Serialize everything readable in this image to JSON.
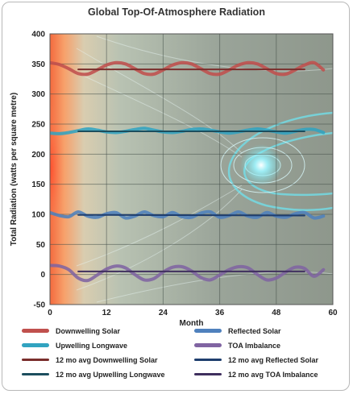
{
  "chart_data": {
    "type": "line",
    "title": "Global Top-Of-Atmosphere Radiation",
    "xlabel": "Month",
    "ylabel": "Total Radiation (watts per square metre)",
    "xlim": [
      0,
      60
    ],
    "ylim": [
      -50,
      400
    ],
    "xticks": [
      0,
      12,
      24,
      36,
      48,
      60
    ],
    "yticks": [
      -50,
      0,
      50,
      100,
      150,
      200,
      250,
      300,
      350,
      400
    ],
    "grid": true,
    "legend_position": "bottom",
    "background": "solar-wind magnetosphere image",
    "series": [
      {
        "name": "Downwelling Solar",
        "color": "#c0504d",
        "style": "monthly",
        "x": [
          0,
          2,
          4,
          6,
          8,
          10,
          12,
          14,
          16,
          18,
          20,
          22,
          24,
          26,
          28,
          30,
          32,
          34,
          36,
          38,
          40,
          42,
          44,
          46,
          48,
          50,
          52,
          54,
          56,
          58
        ],
        "values": [
          352,
          349,
          342,
          334,
          333,
          340,
          348,
          352,
          350,
          342,
          334,
          333,
          340,
          348,
          352,
          350,
          342,
          334,
          333,
          340,
          348,
          352,
          350,
          342,
          334,
          333,
          340,
          348,
          352,
          340
        ]
      },
      {
        "name": "Reflected Solar",
        "color": "#4f81bd",
        "style": "monthly",
        "x": [
          0,
          2,
          4,
          6,
          8,
          10,
          12,
          14,
          16,
          18,
          20,
          22,
          24,
          26,
          28,
          30,
          32,
          34,
          36,
          38,
          40,
          42,
          44,
          46,
          48,
          50,
          52,
          54,
          56,
          58
        ],
        "values": [
          103,
          98,
          96,
          104,
          97,
          95,
          101,
          103,
          94,
          97,
          104,
          98,
          96,
          103,
          96,
          95,
          102,
          104,
          95,
          98,
          104,
          97,
          95,
          103,
          97,
          95,
          101,
          103,
          94,
          97
        ]
      },
      {
        "name": "Upwelling Longwave",
        "color": "#31a3c0",
        "style": "monthly",
        "x": [
          0,
          2,
          4,
          6,
          8,
          10,
          12,
          14,
          16,
          18,
          20,
          22,
          24,
          26,
          28,
          30,
          32,
          34,
          36,
          38,
          40,
          42,
          44,
          46,
          48,
          50,
          52,
          54,
          56,
          58
        ],
        "values": [
          235,
          234,
          236,
          239,
          242,
          240,
          237,
          236,
          238,
          241,
          243,
          240,
          237,
          236,
          238,
          241,
          242,
          240,
          237,
          235,
          237,
          240,
          242,
          240,
          237,
          235,
          238,
          241,
          241,
          236
        ]
      },
      {
        "name": "TOA Imbalance",
        "color": "#8064a2",
        "style": "monthly",
        "x": [
          0,
          2,
          4,
          6,
          8,
          10,
          12,
          14,
          16,
          18,
          20,
          22,
          24,
          26,
          28,
          30,
          32,
          34,
          36,
          38,
          40,
          42,
          44,
          46,
          48,
          50,
          52,
          54,
          56,
          58
        ],
        "values": [
          15,
          14,
          8,
          -6,
          -10,
          -1,
          9,
          14,
          11,
          0,
          -9,
          -7,
          4,
          12,
          13,
          6,
          -5,
          -9,
          -1,
          8,
          13,
          11,
          0,
          -9,
          -6,
          4,
          12,
          10,
          -3,
          8
        ]
      },
      {
        "name": "12 mo avg  Downwelling Solar",
        "color": "#7a2e2c",
        "style": "average",
        "x": [
          6,
          54
        ],
        "values": [
          341,
          341
        ]
      },
      {
        "name": "12 mo avg  Reflected Solar",
        "color": "#1f3e6e",
        "style": "average",
        "x": [
          6,
          54
        ],
        "values": [
          99,
          98
        ]
      },
      {
        "name": "12 mo avg  Upwelling Longwave",
        "color": "#1c4e5e",
        "style": "average",
        "x": [
          6,
          54
        ],
        "values": [
          238,
          238
        ]
      },
      {
        "name": "12 mo avg  TOA Imbalance",
        "color": "#3f2f5e",
        "style": "average",
        "x": [
          6,
          54
        ],
        "values": [
          5,
          5
        ]
      }
    ]
  }
}
